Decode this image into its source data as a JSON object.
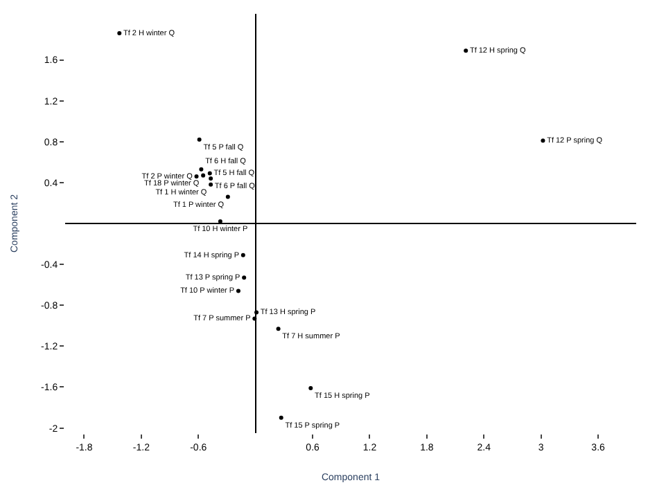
{
  "chart_data": {
    "type": "scatter",
    "xlabel": "Component 1",
    "ylabel": "Component 2",
    "xlim": [
      -2.0,
      4.0
    ],
    "ylim": [
      -2.05,
      2.05
    ],
    "xticks": [
      -1.8,
      -1.2,
      -0.6,
      0.6,
      1.2,
      1.8,
      2.4,
      3,
      3.6
    ],
    "yticks": [
      -2,
      -1.6,
      -1.2,
      -0.8,
      -0.4,
      0.4,
      0.8,
      1.2,
      1.6
    ],
    "legend": false,
    "marker": "circle",
    "series": [
      {
        "color": "#000000",
        "x": [
          -1.43,
          2.21,
          3.02,
          -0.59,
          -0.57,
          -0.62,
          -0.55,
          -0.48,
          -0.47,
          -0.47,
          -0.29,
          -0.37,
          -0.13,
          -0.12,
          -0.18,
          0.01,
          -0.01,
          0.24,
          0.58,
          0.27
        ],
        "values": [
          1.86,
          1.69,
          0.81,
          0.82,
          0.53,
          0.46,
          0.47,
          0.49,
          0.44,
          0.38,
          0.26,
          0.02,
          -0.31,
          -0.53,
          -0.66,
          -0.87,
          -0.93,
          -1.03,
          -1.61,
          -1.9
        ],
        "value_labels": [
          "Tf 2 H winter Q",
          "Tf 12 H spring Q",
          "Tf 12 P spring Q",
          "Tf 5 P fall Q",
          "Tf 6 H fall Q",
          "Tf 2 P winter Q",
          "Tf 18 P winter Q",
          "Tf 5 H fall Q",
          "Tf 6 P fall Q",
          "Tf 1 H winter Q",
          "Tf 1 P winter Q",
          "Tf 10 H winter P",
          "Tf 14 H spring P",
          "Tf 13 P spring P",
          "Tf 10 P winter P",
          "Tf 13 H spring P",
          "Tf 7 P summer P",
          "Tf 7 H summer P",
          "Tf 15 H spring P",
          "Tf 15 P spring P"
        ]
      }
    ]
  }
}
